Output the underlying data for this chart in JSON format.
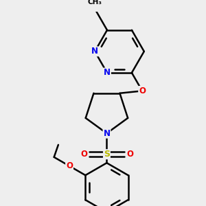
{
  "background_color": "#eeeeee",
  "bond_color": "#000000",
  "bond_width": 1.8,
  "atom_colors": {
    "N": "#0000ee",
    "O": "#ee0000",
    "S": "#bbbb00",
    "C": "#000000"
  }
}
